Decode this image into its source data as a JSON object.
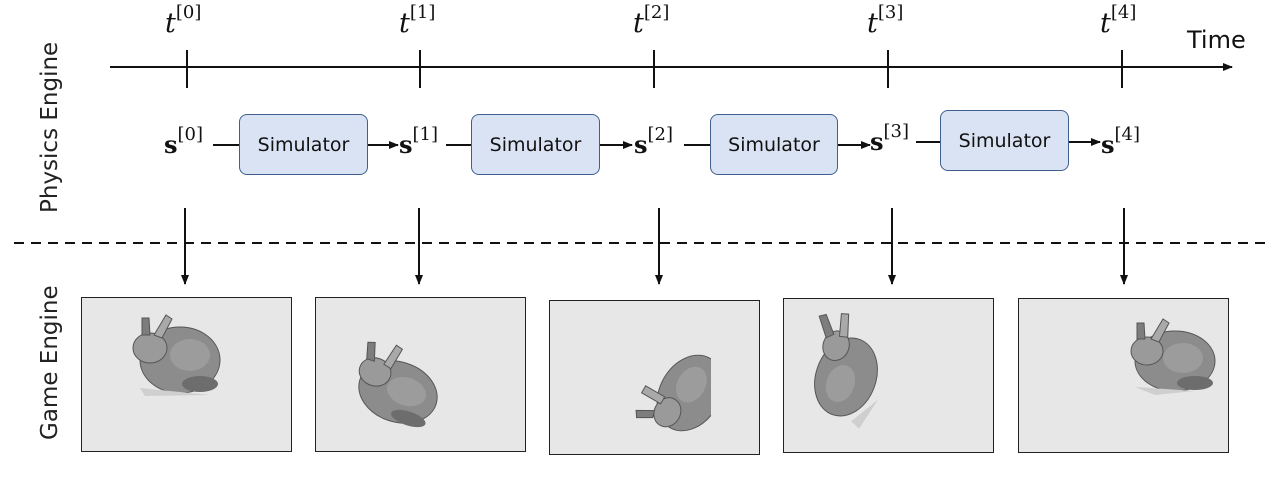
{
  "labels": {
    "physics_engine": "Physics Engine",
    "game_engine": "Game Engine",
    "time": "Time"
  },
  "timesteps": [
    {
      "t_base": "t",
      "t_index": "[0]",
      "s_base": "s",
      "s_index": "[0]"
    },
    {
      "t_base": "t",
      "t_index": "[1]",
      "s_base": "s",
      "s_index": "[1]"
    },
    {
      "t_base": "t",
      "t_index": "[2]",
      "s_base": "s",
      "s_index": "[2]"
    },
    {
      "t_base": "t",
      "t_index": "[3]",
      "s_base": "s",
      "s_index": "[3]"
    },
    {
      "t_base": "t",
      "t_index": "[4]",
      "s_base": "s",
      "s_index": "[4]"
    }
  ],
  "simulators": [
    {
      "label": "Simulator"
    },
    {
      "label": "Simulator"
    },
    {
      "label": "Simulator"
    },
    {
      "label": "Simulator"
    }
  ],
  "frames": [
    {
      "subject": "bunny",
      "pose": "upright, facing left"
    },
    {
      "subject": "bunny",
      "pose": "tilted forward"
    },
    {
      "subject": "bunny",
      "pose": "tumbled, cut off at right edge"
    },
    {
      "subject": "bunny",
      "pose": "rotated upward"
    },
    {
      "subject": "bunny",
      "pose": "upright, facing left"
    }
  ],
  "colors": {
    "simulator_fill": "#dae3f3",
    "simulator_border": "#3f5f8f",
    "frame_background": "#e7e7e7",
    "line": "#111111"
  }
}
